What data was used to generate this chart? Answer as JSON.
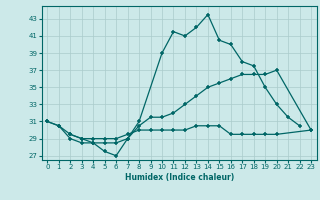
{
  "xlabel": "Humidex (Indice chaleur)",
  "bg_color": "#cce9e9",
  "grid_color": "#aacccc",
  "line_color": "#006666",
  "xlim": [
    -0.5,
    23.5
  ],
  "ylim": [
    26.5,
    44.5
  ],
  "yticks": [
    27,
    29,
    31,
    33,
    35,
    37,
    39,
    41,
    43
  ],
  "xticks": [
    0,
    1,
    2,
    3,
    4,
    5,
    6,
    7,
    8,
    9,
    10,
    11,
    12,
    13,
    14,
    15,
    16,
    17,
    18,
    19,
    20,
    21,
    22,
    23
  ],
  "line1_x": [
    0,
    1,
    2,
    3,
    4,
    5,
    6,
    7,
    8,
    10,
    11,
    12,
    13,
    14,
    15,
    16,
    17,
    18,
    19,
    20,
    21,
    22
  ],
  "line1_y": [
    31.0,
    30.5,
    29.0,
    28.5,
    28.5,
    27.5,
    27.0,
    29.0,
    31.0,
    39.0,
    41.5,
    41.0,
    42.0,
    43.5,
    40.5,
    40.0,
    38.0,
    37.5,
    35.0,
    33.0,
    31.5,
    30.5
  ],
  "line2_x": [
    0,
    1,
    2,
    3,
    4,
    5,
    6,
    7,
    8,
    9,
    10,
    11,
    12,
    13,
    14,
    15,
    16,
    17,
    18,
    19,
    20,
    23
  ],
  "line2_y": [
    31.0,
    30.5,
    29.5,
    29.0,
    28.5,
    28.5,
    28.5,
    29.0,
    30.5,
    31.5,
    31.5,
    32.0,
    33.0,
    34.0,
    35.0,
    35.5,
    36.0,
    36.5,
    36.5,
    36.5,
    37.0,
    30.0
  ],
  "line3_x": [
    2,
    3,
    4,
    5,
    6,
    7,
    8,
    9,
    10,
    11,
    12,
    13,
    14,
    15,
    16,
    17,
    18,
    19,
    20,
    23
  ],
  "line3_y": [
    29.5,
    29.0,
    29.0,
    29.0,
    29.0,
    29.5,
    30.0,
    30.0,
    30.0,
    30.0,
    30.0,
    30.5,
    30.5,
    30.5,
    29.5,
    29.5,
    29.5,
    29.5,
    29.5,
    30.0
  ]
}
